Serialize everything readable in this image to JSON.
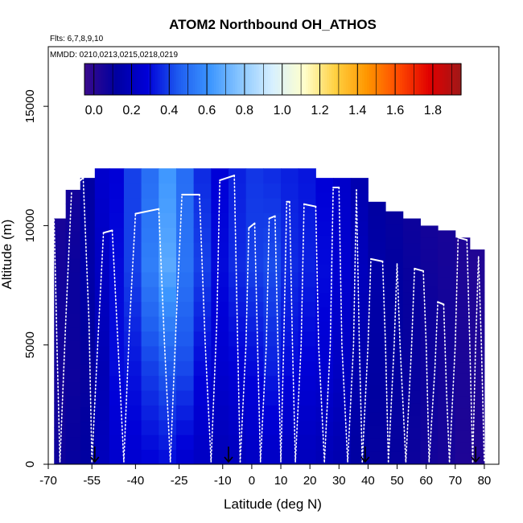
{
  "chart_data": {
    "type": "heatmap",
    "title": "ATOM2 Northbound OH_ATHOS",
    "annotations": {
      "flights": "Flts: 6,7,8,9,10",
      "dates": "MMDD: 0210,0213,0215,0218,0219"
    },
    "xlabel": "Latitude (deg N)",
    "ylabel": "Altitude (m)",
    "xlim": [
      -70,
      85
    ],
    "ylim": [
      0,
      17500
    ],
    "x_ticks": [
      -70,
      -55,
      -40,
      -25,
      -10,
      0,
      10,
      20,
      30,
      40,
      50,
      60,
      70,
      80
    ],
    "y_ticks": [
      0,
      5000,
      10000,
      15000
    ],
    "colorbar": {
      "range": [
        -0.05,
        1.95
      ],
      "tick_values": [
        0.0,
        0.2,
        0.4,
        0.6,
        0.8,
        1.0,
        1.2,
        1.4,
        1.6,
        1.8
      ],
      "tick_labels": [
        "0.0",
        "0.2",
        "0.4",
        "0.6",
        "0.8",
        "1.0",
        "1.2",
        "1.4",
        "1.6",
        "1.8"
      ],
      "colors": [
        "#3a0a8c",
        "#0000a0",
        "#0000d8",
        "#1e5cf0",
        "#3c96ff",
        "#8cc8ff",
        "#d8f0ff",
        "#ffffcc",
        "#ffd040",
        "#ff9600",
        "#ff4a00",
        "#e00000",
        "#a01818"
      ]
    },
    "profile_markers_lat": [
      -54,
      -8,
      39,
      77
    ],
    "curtain": [
      {
        "lat0": -68,
        "lat1": -64,
        "top": 10300,
        "vals": [
          0.08,
          0.06,
          0.07,
          0.05
        ]
      },
      {
        "lat0": -64,
        "lat1": -59,
        "top": 11500,
        "vals": [
          0.1,
          0.08,
          0.09,
          0.06
        ]
      },
      {
        "lat0": -59,
        "lat1": -54,
        "top": 12000,
        "vals": [
          0.12,
          0.1,
          0.14,
          0.12
        ]
      },
      {
        "lat0": -54,
        "lat1": -49,
        "top": 12400,
        "vals": [
          0.2,
          0.18,
          0.22,
          0.25
        ]
      },
      {
        "lat0": -49,
        "lat1": -44,
        "top": 12400,
        "vals": [
          0.25,
          0.3,
          0.3,
          0.28
        ]
      },
      {
        "lat0": -44,
        "lat1": -38,
        "top": 12400,
        "vals": [
          0.26,
          0.32,
          0.4,
          0.4
        ]
      },
      {
        "lat0": -38,
        "lat1": -32,
        "top": 12400,
        "vals": [
          0.28,
          0.4,
          0.55,
          0.5
        ]
      },
      {
        "lat0": -32,
        "lat1": -26,
        "top": 12400,
        "vals": [
          0.3,
          0.45,
          0.68,
          0.62
        ]
      },
      {
        "lat0": -26,
        "lat1": -20,
        "top": 12400,
        "vals": [
          0.25,
          0.42,
          0.52,
          0.5
        ]
      },
      {
        "lat0": -20,
        "lat1": -14,
        "top": 12400,
        "vals": [
          0.22,
          0.3,
          0.4,
          0.36
        ]
      },
      {
        "lat0": -14,
        "lat1": -8,
        "top": 12400,
        "vals": [
          0.18,
          0.26,
          0.3,
          0.28
        ]
      },
      {
        "lat0": -8,
        "lat1": -2,
        "top": 12400,
        "vals": [
          0.2,
          0.28,
          0.36,
          0.34
        ]
      },
      {
        "lat0": -2,
        "lat1": 4,
        "top": 12400,
        "vals": [
          0.22,
          0.3,
          0.4,
          0.38
        ]
      },
      {
        "lat0": 4,
        "lat1": 10,
        "top": 12400,
        "vals": [
          0.22,
          0.34,
          0.42,
          0.36
        ]
      },
      {
        "lat0": 10,
        "lat1": 16,
        "top": 12400,
        "vals": [
          0.2,
          0.3,
          0.36,
          0.34
        ]
      },
      {
        "lat0": 16,
        "lat1": 22,
        "top": 12400,
        "vals": [
          0.2,
          0.28,
          0.34,
          0.32
        ]
      },
      {
        "lat0": 22,
        "lat1": 28,
        "top": 12000,
        "vals": [
          0.18,
          0.26,
          0.3,
          0.28
        ]
      },
      {
        "lat0": 28,
        "lat1": 34,
        "top": 12000,
        "vals": [
          0.16,
          0.22,
          0.26,
          0.24
        ]
      },
      {
        "lat0": 34,
        "lat1": 40,
        "top": 12000,
        "vals": [
          0.12,
          0.15,
          0.2,
          0.16
        ]
      },
      {
        "lat0": 40,
        "lat1": 46,
        "top": 11000,
        "vals": [
          0.1,
          0.12,
          0.14,
          0.12
        ]
      },
      {
        "lat0": 46,
        "lat1": 52,
        "top": 10600,
        "vals": [
          0.1,
          0.11,
          0.12,
          0.1
        ]
      },
      {
        "lat0": 52,
        "lat1": 58,
        "top": 10300,
        "vals": [
          0.08,
          0.1,
          0.1,
          0.08
        ]
      },
      {
        "lat0": 58,
        "lat1": 64,
        "top": 10000,
        "vals": [
          0.06,
          0.08,
          0.08,
          0.06
        ]
      },
      {
        "lat0": 64,
        "lat1": 70,
        "top": 9800,
        "vals": [
          0.05,
          0.06,
          0.06,
          0.05
        ]
      },
      {
        "lat0": 70,
        "lat1": 75,
        "top": 9500,
        "vals": [
          0.03,
          0.04,
          0.04,
          0.03
        ]
      },
      {
        "lat0": 75,
        "lat1": 80,
        "top": 9000,
        "vals": [
          0.02,
          0.03,
          0.03,
          0.02
        ]
      }
    ],
    "flight_tracks": [
      {
        "lat": [
          -68,
          -67,
          -66
        ],
        "alt": [
          10400,
          5000,
          100
        ]
      },
      {
        "lat": [
          -66,
          -64,
          -62
        ],
        "alt": [
          100,
          6000,
          11400
        ]
      },
      {
        "lat": [
          -62,
          -58
        ],
        "alt": [
          11600,
          12000
        ]
      },
      {
        "lat": [
          -58,
          -56,
          -55
        ],
        "alt": [
          12000,
          6000,
          100
        ]
      },
      {
        "lat": [
          -55,
          -53,
          -51
        ],
        "alt": [
          100,
          5000,
          9700
        ]
      },
      {
        "lat": [
          -51,
          -48
        ],
        "alt": [
          9700,
          9800
        ]
      },
      {
        "lat": [
          -48,
          -46,
          -44
        ],
        "alt": [
          9800,
          5000,
          100
        ]
      },
      {
        "lat": [
          -44,
          -42,
          -40
        ],
        "alt": [
          100,
          6000,
          10500
        ]
      },
      {
        "lat": [
          -40,
          -32
        ],
        "alt": [
          10500,
          10700
        ]
      },
      {
        "lat": [
          -32,
          -30,
          -28
        ],
        "alt": [
          10700,
          5000,
          100
        ]
      },
      {
        "lat": [
          -28,
          -26,
          -24
        ],
        "alt": [
          100,
          6000,
          11300
        ]
      },
      {
        "lat": [
          -24,
          -18
        ],
        "alt": [
          11300,
          11300
        ]
      },
      {
        "lat": [
          -18,
          -16,
          -14
        ],
        "alt": [
          11300,
          5000,
          100
        ]
      },
      {
        "lat": [
          -14,
          -12,
          -11
        ],
        "alt": [
          100,
          6000,
          11900
        ]
      },
      {
        "lat": [
          -11,
          -6
        ],
        "alt": [
          11900,
          12100
        ]
      },
      {
        "lat": [
          -6,
          -5,
          -4
        ],
        "alt": [
          12100,
          6000,
          100
        ]
      },
      {
        "lat": [
          -4,
          -2,
          -1
        ],
        "alt": [
          100,
          5000,
          9900
        ]
      },
      {
        "lat": [
          -1,
          1
        ],
        "alt": [
          9900,
          10100
        ]
      },
      {
        "lat": [
          1,
          2,
          3
        ],
        "alt": [
          10100,
          5000,
          100
        ]
      },
      {
        "lat": [
          3,
          5,
          6
        ],
        "alt": [
          100,
          5000,
          10300
        ]
      },
      {
        "lat": [
          6,
          8
        ],
        "alt": [
          10300,
          10400
        ]
      },
      {
        "lat": [
          8,
          9,
          10
        ],
        "alt": [
          10400,
          5000,
          100
        ]
      },
      {
        "lat": [
          10,
          11,
          12
        ],
        "alt": [
          100,
          5000,
          11000
        ]
      },
      {
        "lat": [
          12,
          13
        ],
        "alt": [
          11000,
          11000
        ]
      },
      {
        "lat": [
          13,
          14,
          15
        ],
        "alt": [
          11000,
          5000,
          100
        ]
      },
      {
        "lat": [
          15,
          17,
          18
        ],
        "alt": [
          100,
          5000,
          10900
        ]
      },
      {
        "lat": [
          18,
          22
        ],
        "alt": [
          10900,
          10800
        ]
      },
      {
        "lat": [
          22,
          23,
          25
        ],
        "alt": [
          10800,
          5000,
          100
        ]
      },
      {
        "lat": [
          25,
          27,
          28
        ],
        "alt": [
          100,
          5000,
          11600
        ]
      },
      {
        "lat": [
          28,
          30
        ],
        "alt": [
          11600,
          11600
        ]
      },
      {
        "lat": [
          30,
          31,
          33
        ],
        "alt": [
          11600,
          5000,
          100
        ]
      },
      {
        "lat": [
          33,
          35,
          36
        ],
        "alt": [
          100,
          5000,
          11500
        ]
      },
      {
        "lat": [
          36,
          37,
          38
        ],
        "alt": [
          11500,
          5000,
          100
        ]
      },
      {
        "lat": [
          38,
          40,
          41
        ],
        "alt": [
          100,
          5000,
          8600
        ]
      },
      {
        "lat": [
          41,
          45
        ],
        "alt": [
          8600,
          8500
        ]
      },
      {
        "lat": [
          45,
          46,
          47
        ],
        "alt": [
          8500,
          5000,
          100
        ]
      },
      {
        "lat": [
          47,
          49,
          50
        ],
        "alt": [
          100,
          5000,
          8400
        ]
      },
      {
        "lat": [
          50,
          51,
          53
        ],
        "alt": [
          8400,
          5000,
          100
        ]
      },
      {
        "lat": [
          53,
          55,
          56
        ],
        "alt": [
          100,
          5000,
          8200
        ]
      },
      {
        "lat": [
          56,
          59
        ],
        "alt": [
          8200,
          8100
        ]
      },
      {
        "lat": [
          59,
          60,
          61
        ],
        "alt": [
          8100,
          5000,
          100
        ]
      },
      {
        "lat": [
          61,
          63,
          64
        ],
        "alt": [
          100,
          4000,
          6800
        ]
      },
      {
        "lat": [
          64,
          66
        ],
        "alt": [
          6800,
          6700
        ]
      },
      {
        "lat": [
          66,
          67,
          68
        ],
        "alt": [
          6700,
          3000,
          100
        ]
      },
      {
        "lat": [
          68,
          70,
          71
        ],
        "alt": [
          100,
          5000,
          9500
        ]
      },
      {
        "lat": [
          71,
          74
        ],
        "alt": [
          9500,
          9400
        ]
      },
      {
        "lat": [
          74,
          75,
          76
        ],
        "alt": [
          9400,
          5000,
          100
        ]
      },
      {
        "lat": [
          76,
          77,
          78
        ],
        "alt": [
          100,
          5000,
          8700
        ]
      },
      {
        "lat": [
          78,
          79,
          80
        ],
        "alt": [
          8700,
          5000,
          100
        ]
      }
    ]
  }
}
